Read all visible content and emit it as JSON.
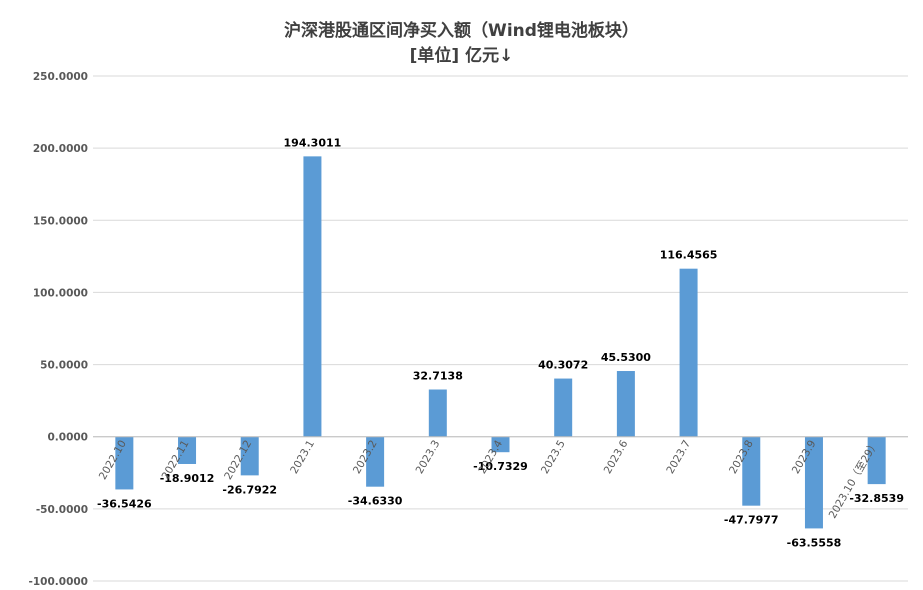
{
  "chart_data": {
    "type": "bar",
    "title": "沪深港股通区间净买入额（Wind锂电池板块）",
    "subtitle": "[单位] 亿元↓",
    "xlabel": "",
    "ylabel": "",
    "ylim": [
      -100,
      250
    ],
    "yticks": [
      250,
      200,
      150,
      100,
      50,
      0,
      -50,
      -100
    ],
    "ytick_labels": [
      "250.0000",
      "200.0000",
      "150.0000",
      "100.0000",
      "50.0000",
      "0.0000",
      "-50.0000",
      "-100.0000"
    ],
    "grid": true,
    "bar_color": "#5B9BD5",
    "categories": [
      "2022.10",
      "2022.11",
      "2022.12",
      "2023.1",
      "2023.2",
      "2023.3",
      "2023.4",
      "2023.5",
      "2023.6",
      "2023.7",
      "2023.8",
      "2023.9",
      "2023.10（至29）"
    ],
    "values": [
      -36.5426,
      -18.9012,
      -26.7922,
      194.3011,
      -34.633,
      32.7138,
      -10.7329,
      40.3072,
      45.53,
      116.4565,
      -47.7977,
      -63.5558,
      -32.8539
    ],
    "value_labels": [
      "-36.5426",
      "-18.9012",
      "-26.7922",
      "194.3011",
      "-34.6330",
      "32.7138",
      "-10.7329",
      "40.3072",
      "45.5300",
      "116.4565",
      "-47.7977",
      "-63.5558",
      "-32.8539"
    ]
  }
}
